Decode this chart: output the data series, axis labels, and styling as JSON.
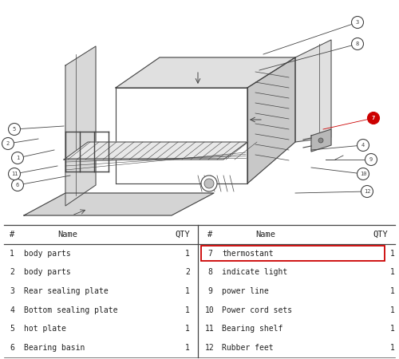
{
  "bg_color": "#ffffff",
  "left_parts": [
    [
      "1",
      "body  parts",
      "1"
    ],
    [
      "2",
      "body  parts",
      "2"
    ],
    [
      "3",
      "Rear  sealing  plate",
      "1"
    ],
    [
      "4",
      "Bottom  sealing  plate",
      "1"
    ],
    [
      "5",
      "hot  plate",
      "1"
    ],
    [
      "6",
      "Bearing  basin",
      "1"
    ]
  ],
  "right_parts": [
    [
      "7",
      "thermostant",
      "1"
    ],
    [
      "8",
      "indicate  light",
      "1"
    ],
    [
      "9",
      "power  line",
      "1"
    ],
    [
      "10",
      "Power  cord  sets",
      "1"
    ],
    [
      "11",
      "Bearing  shelf",
      "1"
    ],
    [
      "12",
      "Rubber  feet",
      "1"
    ]
  ],
  "highlight_row": 0,
  "highlight_color": "#cc0000",
  "line_color": "#444444",
  "text_color": "#222222",
  "callouts": [
    [
      1,
      22,
      198,
      68,
      188
    ],
    [
      2,
      10,
      180,
      48,
      174
    ],
    [
      3,
      448,
      28,
      330,
      68
    ],
    [
      4,
      455,
      182,
      390,
      188
    ],
    [
      5,
      18,
      162,
      80,
      158
    ],
    [
      6,
      22,
      232,
      88,
      220
    ],
    [
      7,
      468,
      148,
      405,
      162
    ],
    [
      8,
      448,
      55,
      325,
      88
    ],
    [
      9,
      465,
      200,
      408,
      200
    ],
    [
      10,
      455,
      218,
      390,
      210
    ],
    [
      11,
      18,
      218,
      72,
      208
    ],
    [
      12,
      460,
      240,
      370,
      242
    ]
  ]
}
